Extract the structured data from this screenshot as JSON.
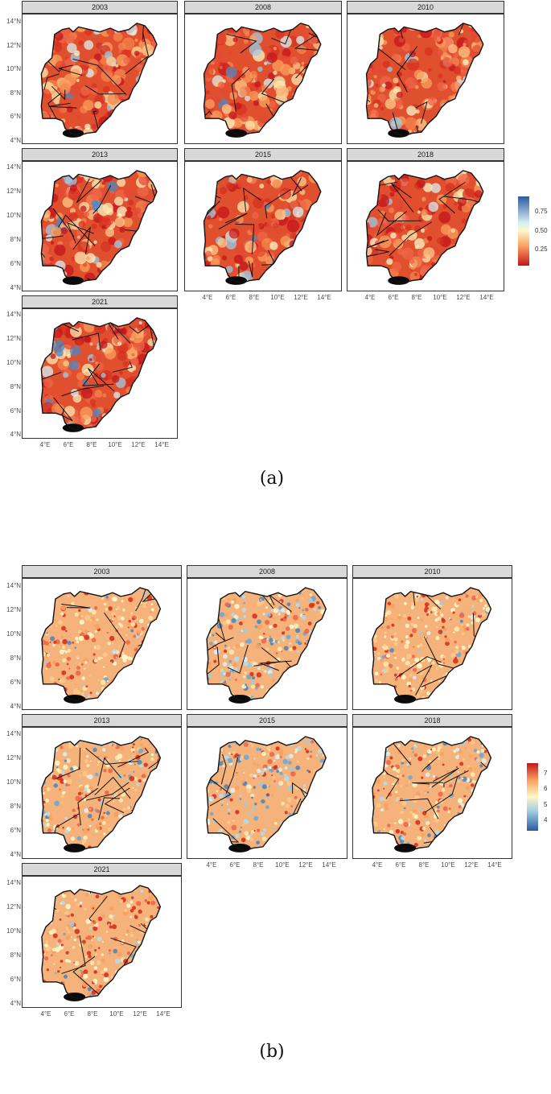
{
  "figure_a": {
    "panels": [
      "2003",
      "2008",
      "2010",
      "2013",
      "2015",
      "2018",
      "2021"
    ],
    "y_ticks": [
      "14°N",
      "12°N",
      "10°N",
      "8°N",
      "6°N",
      "4°N"
    ],
    "x_ticks": [
      "4°E",
      "6°E",
      "8°E",
      "10°E",
      "12°E",
      "14°E"
    ],
    "legend": {
      "ticks": [
        "0.75",
        "0.50",
        "0.25"
      ],
      "colors": [
        "#2c5aa0",
        "#fdf7c8",
        "#c4161c"
      ]
    },
    "caption": "(a)"
  },
  "figure_b": {
    "panels": [
      "2003",
      "2008",
      "2010",
      "2013",
      "2015",
      "2018",
      "2021"
    ],
    "y_ticks": [
      "14°N",
      "12°N",
      "10°N",
      "8°N",
      "6°N",
      "4°N"
    ],
    "x_ticks": [
      "4°E",
      "6°E",
      "8°E",
      "10°E",
      "12°E",
      "14°E"
    ],
    "legend": {
      "ticks": [
        "7",
        "6",
        "5",
        "4"
      ],
      "colors": [
        "#c4161c",
        "#fdf7c8",
        "#2c5aa0"
      ]
    },
    "caption": "(b)"
  }
}
